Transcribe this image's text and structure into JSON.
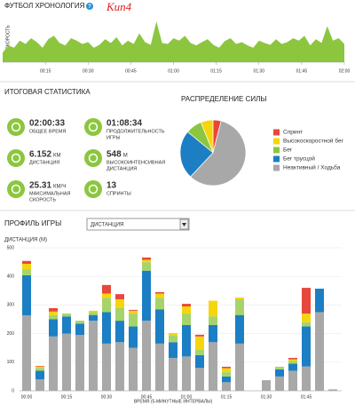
{
  "chart_data": [
    {
      "type": "area",
      "title": "ФУТБОЛ ХРОНОЛОГИЯ",
      "help": "?",
      "annotation": "Kun4",
      "y_label": "СКОРОСТЬ",
      "color": "#8cc63f",
      "x": [
        0,
        2,
        4,
        6,
        8,
        10,
        12,
        14,
        16,
        18,
        20,
        22,
        24,
        26,
        28,
        30,
        32,
        34,
        36,
        38,
        40,
        42,
        44,
        46,
        48,
        50,
        52,
        54,
        56,
        58,
        60,
        62,
        64,
        66,
        68,
        70,
        72,
        74,
        76,
        78,
        80,
        82,
        84,
        86,
        88,
        90,
        92,
        94,
        96,
        98,
        100,
        102,
        104,
        106,
        108,
        110,
        112,
        114,
        116,
        118,
        120
      ],
      "values": [
        20,
        35,
        30,
        45,
        38,
        50,
        42,
        30,
        48,
        55,
        40,
        35,
        50,
        45,
        38,
        42,
        30,
        36,
        48,
        40,
        52,
        35,
        45,
        38,
        60,
        42,
        36,
        85,
        40,
        38,
        50,
        45,
        55,
        40,
        35,
        42,
        48,
        36,
        30,
        44,
        50,
        38,
        42,
        35,
        30,
        45,
        40,
        36,
        48,
        38,
        42,
        50,
        45,
        55,
        35,
        48,
        40,
        75,
        45,
        50,
        38
      ],
      "xlim": [
        0,
        120
      ],
      "ylim": [
        0,
        100
      ],
      "xticks": [
        {
          "value": 15,
          "label": "00:15"
        },
        {
          "value": 30,
          "label": "00:30"
        },
        {
          "value": 45,
          "label": "00:45"
        },
        {
          "value": 60,
          "label": "01:00"
        },
        {
          "value": 75,
          "label": "01:15"
        },
        {
          "value": 90,
          "label": "01:30"
        },
        {
          "value": 105,
          "label": "01:45"
        },
        {
          "value": 120,
          "label": "02:00"
        }
      ]
    },
    {
      "type": "pie",
      "title": "РАСПРЕДЕЛЕНИЕ СИЛЫ",
      "categories": [
        "Спринт",
        "Высокоскоростной бег",
        "Бег",
        "Бег трусцой",
        "Неактивный / Ходьба"
      ],
      "values": [
        4,
        6,
        8,
        24,
        58
      ],
      "colors": [
        "#e8473b",
        "#f5d60c",
        "#8cc63f",
        "#1c7fc4",
        "#a8a8a8"
      ]
    },
    {
      "type": "stacked-bar",
      "y_label": "ДИСТАНЦИЯ (М)",
      "x_label": "ВРЕМЯ (5-МИНУТНЫЕ ИНТЕРВАЛЫ)",
      "categories": [
        "00:00",
        null,
        null,
        "00:15",
        null,
        null,
        "00:30",
        null,
        null,
        "00:45",
        null,
        null,
        "01:00",
        null,
        null,
        "01:15",
        null,
        null,
        "01:30",
        null,
        null,
        "01:45",
        null,
        null
      ],
      "ylim": [
        0,
        500
      ],
      "yticks": [
        0,
        100,
        200,
        300,
        400,
        500
      ],
      "grid": true,
      "series": [
        {
          "color": "#a8a8a8",
          "values": [
            264,
            40,
            190,
            200,
            195,
            245,
            165,
            170,
            150,
            245,
            165,
            115,
            120,
            80,
            170,
            30,
            165,
            null,
            37,
            50,
            70,
            85,
            275,
            5
          ]
        },
        {
          "color": "#1c7fc4",
          "values": [
            140,
            30,
            60,
            60,
            40,
            20,
            110,
            75,
            75,
            175,
            120,
            55,
            110,
            45,
            60,
            20,
            100,
            null,
            0,
            25,
            25,
            140,
            82,
            0
          ]
        },
        {
          "color": "#a6d46a",
          "values": [
            20,
            10,
            15,
            10,
            10,
            10,
            50,
            45,
            45,
            30,
            40,
            25,
            40,
            20,
            30,
            15,
            55,
            null,
            0,
            9,
            10,
            15,
            0,
            0
          ]
        },
        {
          "color": "#f5d60c",
          "values": [
            20,
            5,
            12,
            0,
            0,
            5,
            15,
            30,
            10,
            8,
            15,
            7,
            25,
            45,
            55,
            14,
            6,
            null,
            0,
            0,
            5,
            30,
            0,
            0
          ]
        },
        {
          "color": "#e8473b",
          "values": [
            10,
            2,
            12,
            0,
            0,
            0,
            30,
            18,
            3,
            8,
            5,
            0,
            9,
            6,
            0,
            5,
            0,
            null,
            0,
            0,
            5,
            90,
            0,
            0
          ]
        }
      ]
    }
  ],
  "summary": {
    "title": "ИТОГОВАЯ СТАТИСТИКА",
    "stats": [
      {
        "value": "02:00:33",
        "label": [
          "ОБЩЕЕ ВРЕМЯ"
        ]
      },
      {
        "value": "01:08:34",
        "label": [
          "ПРОДОЛЖИТЕЛЬНОСТЬ",
          "ИГРЫ"
        ]
      },
      {
        "value": "6.152",
        "unit": "КМ",
        "label": [
          "ДИСТАНЦИЯ"
        ]
      },
      {
        "value": "548",
        "unit": "М",
        "label": [
          "ВЫСОКОИНТЕНСИВНАЯ",
          "ДИСТАНЦИЯ"
        ]
      },
      {
        "value": "25.31",
        "unit": "КМ/Ч",
        "label": [
          "МАКСИМАЛЬНАЯ",
          "СКОРОСТЬ"
        ]
      },
      {
        "value": "13",
        "label": [
          "СПРИНТЫ"
        ]
      }
    ]
  },
  "profile": {
    "title": "ПРОФИЛЬ ИГРЫ",
    "dropdown": "ДИСТАНЦИЯ"
  }
}
